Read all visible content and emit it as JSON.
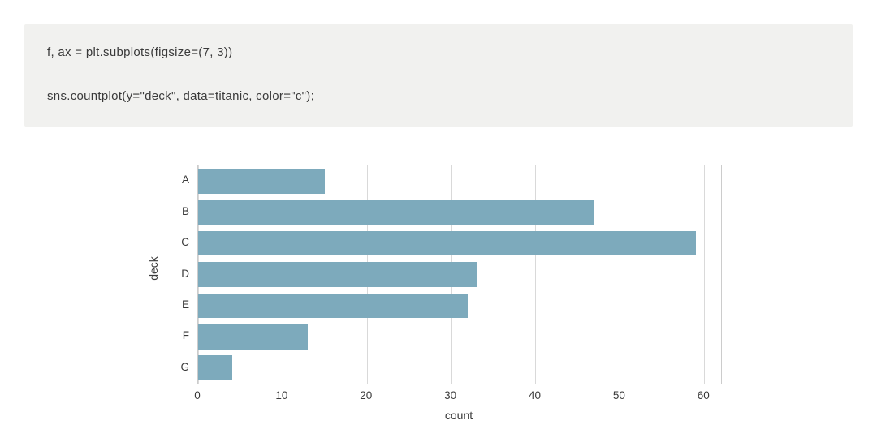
{
  "code_block": {
    "lines": [
      "f, ax = plt.subplots(figsize=(7, 3))",
      "sns.countplot(y=\"deck\", data=titanic, color=\"c\");"
    ],
    "background": "#f1f1ef"
  },
  "chart_data": {
    "type": "bar",
    "orientation": "horizontal",
    "title": "",
    "categories": [
      "A",
      "B",
      "C",
      "D",
      "E",
      "F",
      "G"
    ],
    "values": [
      15,
      47,
      59,
      33,
      32,
      13,
      4
    ],
    "xlabel": "count",
    "ylabel": "deck",
    "xticks": [
      0,
      10,
      20,
      30,
      40,
      50,
      60
    ],
    "xlim": [
      0,
      62
    ],
    "grid": true,
    "legend": false,
    "bar_color": "#7daabc",
    "grid_color": "#d9d9d9",
    "border_color": "#cccccc",
    "tick_label_color": "#3a3a3a"
  }
}
